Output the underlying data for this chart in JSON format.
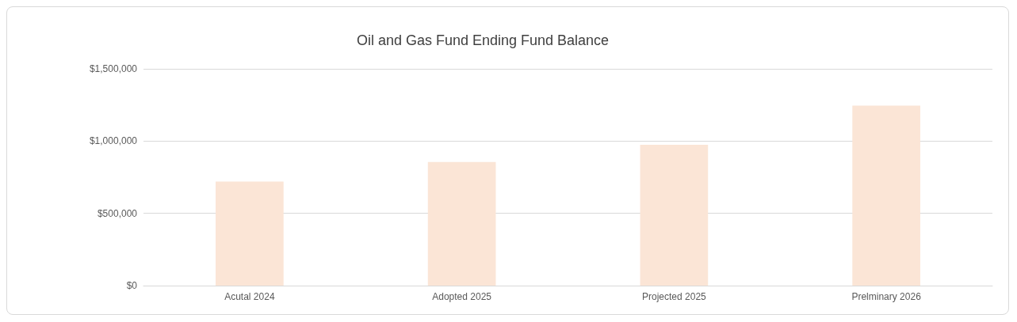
{
  "chart_data": {
    "type": "bar",
    "title": "Oil and Gas Fund Ending Fund Balance",
    "categories": [
      "Acutal 2024",
      "Adopted 2025",
      "Projected 2025",
      "Prelminary 2026"
    ],
    "values": [
      720000,
      855000,
      975000,
      1245000
    ],
    "color": "#fbe5d6",
    "ylim": [
      0,
      1500000
    ],
    "yticks": [
      {
        "value": 0,
        "label": "$0"
      },
      {
        "value": 500000,
        "label": "$500,000"
      },
      {
        "value": 1000000,
        "label": "$1,000,000"
      },
      {
        "value": 1500000,
        "label": "$1,500,000"
      }
    ],
    "grid": "y"
  }
}
